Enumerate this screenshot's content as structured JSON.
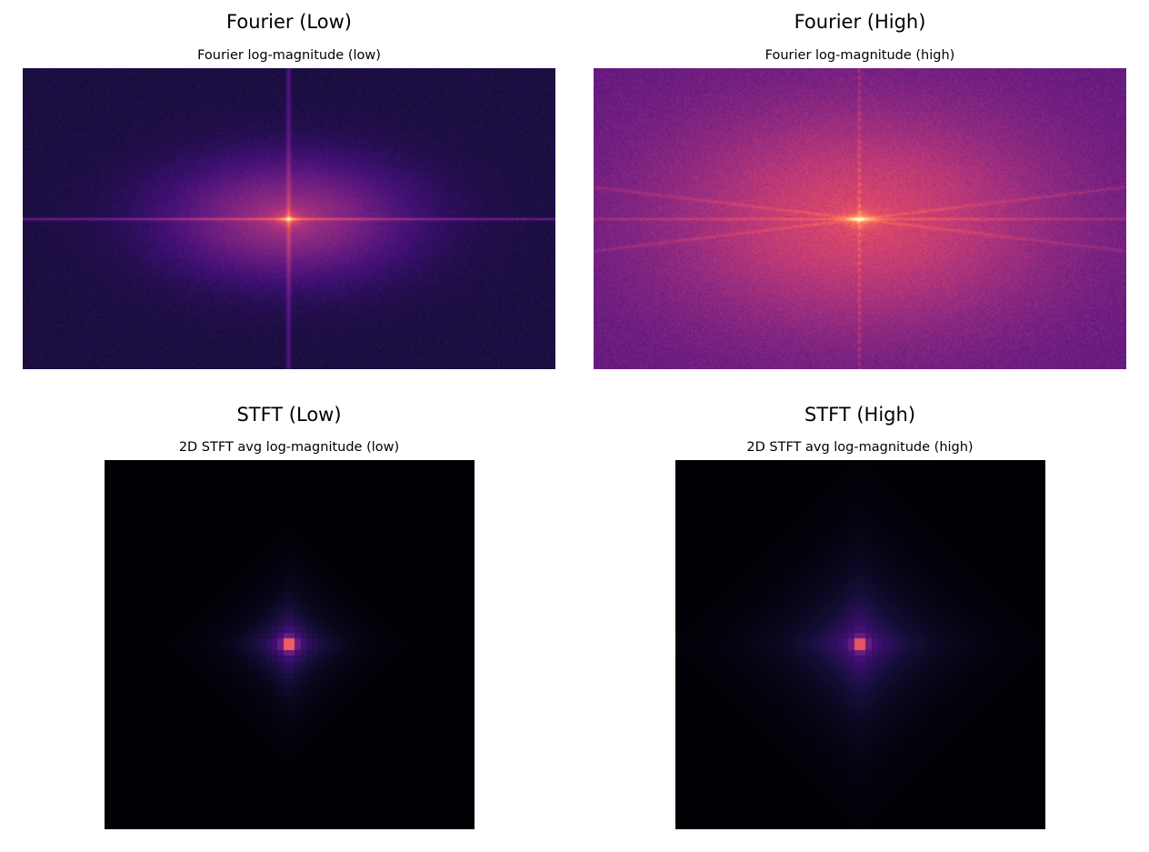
{
  "panels": {
    "fourier_low": {
      "suptitle": "Fourier (Low)",
      "title": "Fourier log-magnitude (low)",
      "colormap": "magma"
    },
    "fourier_high": {
      "suptitle": "Fourier (High)",
      "title": "Fourier log-magnitude (high)",
      "colormap": "magma"
    },
    "stft_low": {
      "suptitle": "STFT (Low)",
      "title": "2D STFT avg log-magnitude (low)",
      "colormap": "magma"
    },
    "stft_high": {
      "suptitle": "STFT (High)",
      "title": "2D STFT avg log-magnitude (high)",
      "colormap": "magma"
    }
  },
  "chart_data": [
    {
      "type": "heatmap",
      "title": "Fourier log-magnitude (low)",
      "colormap": "magma",
      "grid": false,
      "axes_visible": false,
      "pattern": "centered spectrum; bright DC peak at center, strong horizontal and vertical axis lines, elliptical halo wider than tall"
    },
    {
      "type": "heatmap",
      "title": "Fourier log-magnitude (high)",
      "colormap": "magma",
      "grid": false,
      "axes_visible": false,
      "pattern": "centered spectrum; bright DC peak at center, higher overall energy, diagonal streaks and dotted vertical line"
    },
    {
      "type": "heatmap",
      "title": "2D STFT avg log-magnitude (low)",
      "colormap": "magma",
      "grid": false,
      "axes_visible": false,
      "pattern": "coarse pixel grid; bright 2x2 block at center fading into a compact diamond-shaped glow on black"
    },
    {
      "type": "heatmap",
      "title": "2D STFT avg log-magnitude (high)",
      "colormap": "magma",
      "grid": false,
      "axes_visible": false,
      "pattern": "coarse pixel grid; bright 2x2 block at center with a wider, fainter diamond-shaped glow on black"
    }
  ]
}
